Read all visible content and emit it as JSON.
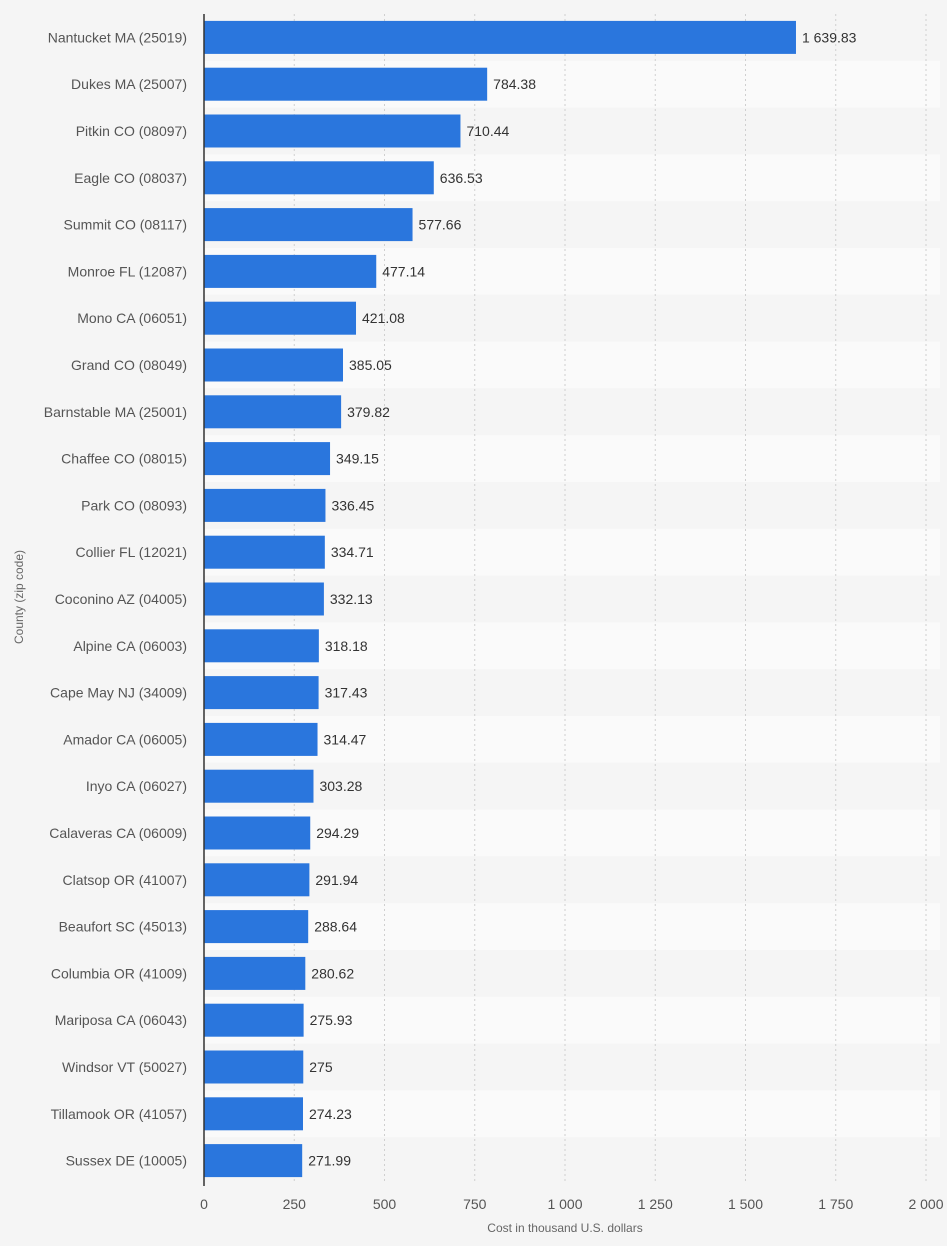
{
  "chart_data": {
    "type": "bar",
    "orientation": "horizontal",
    "xlabel": "Cost in thousand U.S. dollars",
    "ylabel": "County (zip code)",
    "xlim": [
      0,
      2000
    ],
    "xticks": [
      0,
      250,
      500,
      750,
      1000,
      1250,
      1500,
      1750,
      2000
    ],
    "xtick_labels": [
      "0",
      "250",
      "500",
      "750",
      "1 000",
      "1 250",
      "1 500",
      "1 750",
      "2 000"
    ],
    "grid": true,
    "bar_color": "#2a76dd",
    "categories": [
      "Nantucket MA (25019)",
      "Dukes MA (25007)",
      "Pitkin CO (08097)",
      "Eagle CO (08037)",
      "Summit CO (08117)",
      "Monroe FL (12087)",
      "Mono CA (06051)",
      "Grand CO (08049)",
      "Barnstable MA (25001)",
      "Chaffee CO (08015)",
      "Park CO (08093)",
      "Collier FL (12021)",
      "Coconino AZ (04005)",
      "Alpine CA (06003)",
      "Cape May NJ (34009)",
      "Amador CA (06005)",
      "Inyo CA (06027)",
      "Calaveras CA (06009)",
      "Clatsop OR (41007)",
      "Beaufort SC (45013)",
      "Columbia OR (41009)",
      "Mariposa CA (06043)",
      "Windsor VT (50027)",
      "Tillamook OR (41057)",
      "Sussex DE (10005)"
    ],
    "values": [
      1639.83,
      784.38,
      710.44,
      636.53,
      577.66,
      477.14,
      421.08,
      385.05,
      379.82,
      349.15,
      336.45,
      334.71,
      332.13,
      318.18,
      317.43,
      314.47,
      303.28,
      294.29,
      291.94,
      288.64,
      280.62,
      275.93,
      275,
      274.23,
      271.99
    ],
    "value_labels": [
      "1 639.83",
      "784.38",
      "710.44",
      "636.53",
      "577.66",
      "477.14",
      "421.08",
      "385.05",
      "379.82",
      "349.15",
      "336.45",
      "334.71",
      "332.13",
      "318.18",
      "317.43",
      "314.47",
      "303.28",
      "294.29",
      "291.94",
      "288.64",
      "280.62",
      "275.93",
      "275",
      "274.23",
      "271.99"
    ]
  }
}
